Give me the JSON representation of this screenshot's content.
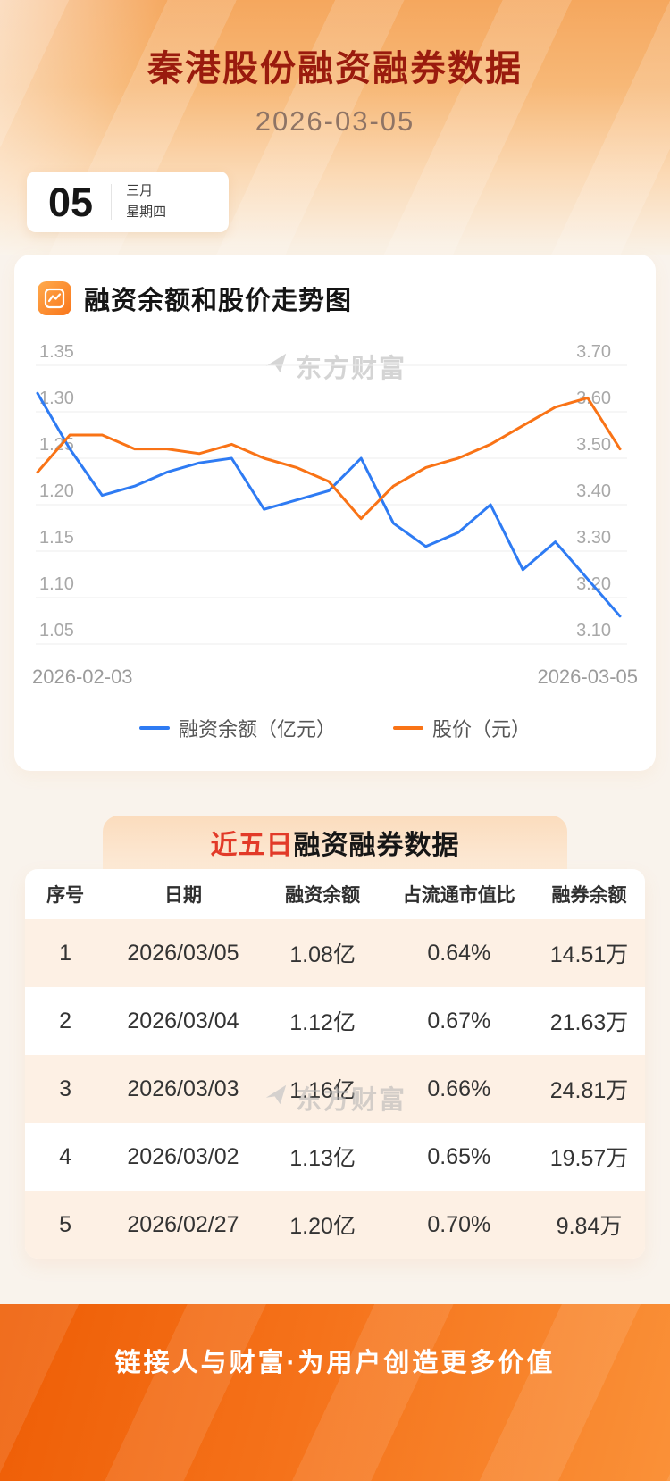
{
  "header": {
    "title": "秦港股份融资融券数据",
    "date": "2026-03-05"
  },
  "date_card": {
    "day": "05",
    "month": "三月",
    "weekday": "星期四"
  },
  "chart_section": {
    "title": "融资余额和股价走势图",
    "watermark": "东方财富"
  },
  "chart_data": {
    "type": "line",
    "title": "融资余额和股价走势图",
    "x_start_label": "2026-02-03",
    "x_end_label": "2026-03-05",
    "grid": true,
    "legend_position": "bottom",
    "left_axis": {
      "label": "融资余额（亿元）",
      "min": 1.05,
      "max": 1.35,
      "ticks": [
        1.35,
        1.3,
        1.25,
        1.2,
        1.15,
        1.1,
        1.05
      ]
    },
    "right_axis": {
      "label": "股价（元）",
      "min": 3.1,
      "max": 3.7,
      "ticks": [
        3.7,
        3.6,
        3.5,
        3.4,
        3.3,
        3.2,
        3.1
      ]
    },
    "series": [
      {
        "name": "融资余额（亿元）",
        "axis": "left",
        "color": "#2e7bf3",
        "values": [
          1.32,
          1.26,
          1.21,
          1.22,
          1.235,
          1.245,
          1.25,
          1.195,
          1.205,
          1.215,
          1.25,
          1.18,
          1.155,
          1.17,
          1.2,
          1.13,
          1.16,
          1.12,
          1.08
        ]
      },
      {
        "name": "股价（元）",
        "axis": "right",
        "color": "#f97316",
        "values": [
          3.47,
          3.55,
          3.55,
          3.52,
          3.52,
          3.51,
          3.53,
          3.5,
          3.48,
          3.45,
          3.37,
          3.44,
          3.48,
          3.5,
          3.53,
          3.57,
          3.61,
          3.63,
          3.52
        ]
      }
    ]
  },
  "table_section": {
    "title_highlight": "近五日",
    "title_rest": "融资融券数据",
    "watermark": "东方财富",
    "columns": [
      "序号",
      "日期",
      "融资余额",
      "占流通市值比",
      "融券余额"
    ],
    "rows": [
      [
        "1",
        "2026/03/05",
        "1.08亿",
        "0.64%",
        "14.51万"
      ],
      [
        "2",
        "2026/03/04",
        "1.12亿",
        "0.67%",
        "21.63万"
      ],
      [
        "3",
        "2026/03/03",
        "1.16亿",
        "0.66%",
        "24.81万"
      ],
      [
        "4",
        "2026/03/02",
        "1.13亿",
        "0.65%",
        "19.57万"
      ],
      [
        "5",
        "2026/02/27",
        "1.20亿",
        "0.70%",
        "9.84万"
      ]
    ]
  },
  "footer": {
    "slogan": "链接人与财富·为用户创造更多价值"
  },
  "colors": {
    "title_red": "#9a1b0e",
    "highlight_red": "#e23a28",
    "line_blue": "#2e7bf3",
    "line_orange": "#f97316",
    "accent_orange": "#f97316"
  }
}
